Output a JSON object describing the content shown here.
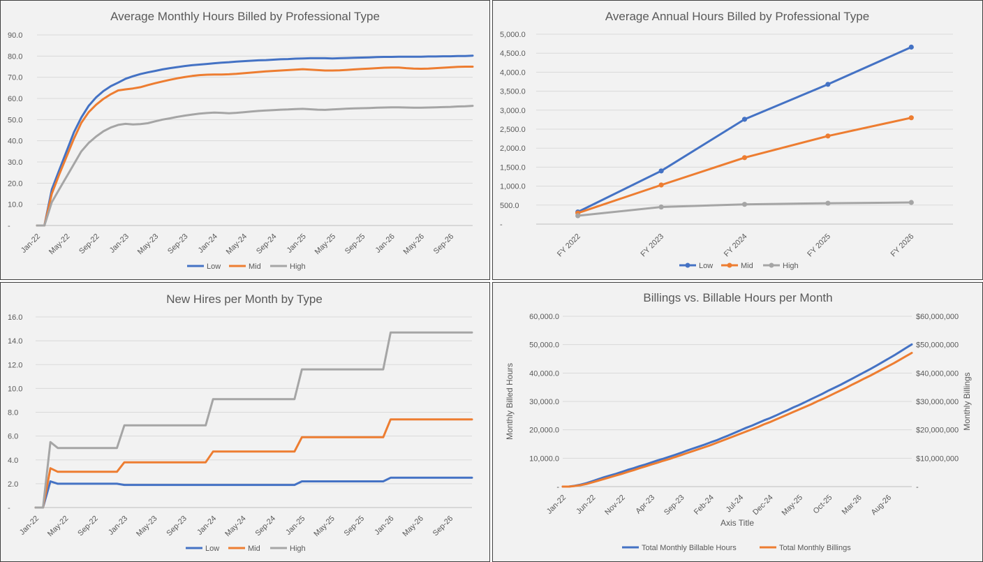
{
  "colors": {
    "low": "#4472c4",
    "mid": "#ed7d31",
    "high": "#a5a5a5",
    "grid": "#d9d9d9",
    "text": "#595959",
    "panel": "#f2f2f2"
  },
  "chart_data": [
    {
      "type": "line",
      "title": "Average Monthly Hours Billed by Professional Type",
      "x_tick_labels": [
        "Jan-22",
        "May-22",
        "Sep-22",
        "Jan-23",
        "May-23",
        "Sep-23",
        "Jan-24",
        "May-24",
        "Sep-24",
        "Jan-25",
        "May-25",
        "Sep-25",
        "Jan-26",
        "May-26",
        "Sep-26"
      ],
      "x_count": 60,
      "ylim": [
        0,
        90
      ],
      "y_tick_labels": [
        "-",
        "10.0",
        "20.0",
        "30.0",
        "40.0",
        "50.0",
        "60.0",
        "70.0",
        "80.0",
        "90.0"
      ],
      "legend": "bottom",
      "series": [
        {
          "name": "Low",
          "values": [
            0,
            0,
            17,
            26,
            35,
            44,
            51,
            56.5,
            60.5,
            63.5,
            65.8,
            67.5,
            69.3,
            70.5,
            71.5,
            72.3,
            73,
            73.7,
            74.3,
            74.8,
            75.3,
            75.7,
            76,
            76.3,
            76.6,
            76.9,
            77.1,
            77.4,
            77.6,
            77.8,
            78,
            78.1,
            78.3,
            78.5,
            78.6,
            78.8,
            78.9,
            79,
            79,
            79,
            78.9,
            79,
            79.1,
            79.2,
            79.3,
            79.4,
            79.5,
            79.6,
            79.6,
            79.7,
            79.7,
            79.7,
            79.7,
            79.8,
            79.8,
            79.9,
            79.9,
            80,
            80,
            80.2
          ]
        },
        {
          "name": "Mid",
          "values": [
            0,
            0,
            15,
            24,
            32.5,
            41,
            48.5,
            53.5,
            57,
            59.8,
            62,
            63.8,
            64.3,
            64.7,
            65.3,
            66.3,
            67.2,
            68,
            68.8,
            69.5,
            70.1,
            70.6,
            71,
            71.2,
            71.3,
            71.3,
            71.4,
            71.6,
            71.9,
            72.2,
            72.5,
            72.8,
            73,
            73.2,
            73.4,
            73.6,
            73.8,
            73.6,
            73.4,
            73.2,
            73.2,
            73.3,
            73.5,
            73.7,
            73.9,
            74.1,
            74.3,
            74.5,
            74.6,
            74.6,
            74.3,
            74.1,
            74,
            74.1,
            74.3,
            74.5,
            74.7,
            74.9,
            75,
            75
          ]
        },
        {
          "name": "High",
          "values": [
            0,
            0,
            11,
            17,
            23,
            29,
            35,
            39,
            42,
            44.5,
            46.3,
            47.5,
            48,
            47.7,
            47.9,
            48.3,
            49.2,
            50,
            50.6,
            51.3,
            51.9,
            52.4,
            52.8,
            53.1,
            53.3,
            53.2,
            53,
            53.2,
            53.5,
            53.8,
            54.1,
            54.3,
            54.5,
            54.7,
            54.8,
            55,
            55.1,
            54.9,
            54.7,
            54.6,
            54.8,
            55,
            55.2,
            55.3,
            55.4,
            55.5,
            55.6,
            55.7,
            55.8,
            55.8,
            55.7,
            55.6,
            55.6,
            55.7,
            55.8,
            55.9,
            56,
            56.2,
            56.3,
            56.5
          ]
        }
      ]
    },
    {
      "type": "line",
      "title": "Average Annual Hours Billed by Professional Type",
      "categories": [
        "FY 2022",
        "FY 2023",
        "FY 2024",
        "FY 2025",
        "FY 2026"
      ],
      "ylim": [
        0,
        5000
      ],
      "y_tick_labels": [
        "-",
        "500.0",
        "1,000.0",
        "1,500.0",
        "2,000.0",
        "2,500.0",
        "3,000.0",
        "3,500.0",
        "4,000.0",
        "4,500.0",
        "5,000.0"
      ],
      "markers": true,
      "legend": "bottom",
      "series": [
        {
          "name": "Low",
          "values": [
            320,
            1400,
            2760,
            3680,
            4660
          ]
        },
        {
          "name": "Mid",
          "values": [
            290,
            1030,
            1750,
            2320,
            2800
          ]
        },
        {
          "name": "High",
          "values": [
            220,
            450,
            520,
            550,
            570
          ]
        }
      ]
    },
    {
      "type": "line",
      "title": "New Hires per Month by Type",
      "x_tick_labels": [
        "Jan-22",
        "May-22",
        "Sep-22",
        "Jan-23",
        "May-23",
        "Sep-23",
        "Jan-24",
        "May-24",
        "Sep-24",
        "Jan-25",
        "May-25",
        "Sep-25",
        "Jan-26",
        "May-26",
        "Sep-26"
      ],
      "x_count": 60,
      "ylim": [
        0,
        16
      ],
      "y_tick_labels": [
        "-",
        "2.0",
        "4.0",
        "6.0",
        "8.0",
        "10.0",
        "12.0",
        "14.0",
        "16.0"
      ],
      "legend": "bottom",
      "series": [
        {
          "name": "Low",
          "values": [
            0,
            0,
            2.2,
            2,
            2,
            2,
            2,
            2,
            2,
            2,
            2,
            2,
            1.9,
            1.9,
            1.9,
            1.9,
            1.9,
            1.9,
            1.9,
            1.9,
            1.9,
            1.9,
            1.9,
            1.9,
            1.9,
            1.9,
            1.9,
            1.9,
            1.9,
            1.9,
            1.9,
            1.9,
            1.9,
            1.9,
            1.9,
            1.9,
            2.2,
            2.2,
            2.2,
            2.2,
            2.2,
            2.2,
            2.2,
            2.2,
            2.2,
            2.2,
            2.2,
            2.2,
            2.5,
            2.5,
            2.5,
            2.5,
            2.5,
            2.5,
            2.5,
            2.5,
            2.5,
            2.5,
            2.5,
            2.5
          ]
        },
        {
          "name": "Mid",
          "values": [
            0,
            0,
            3.3,
            3,
            3,
            3,
            3,
            3,
            3,
            3,
            3,
            3,
            3.8,
            3.8,
            3.8,
            3.8,
            3.8,
            3.8,
            3.8,
            3.8,
            3.8,
            3.8,
            3.8,
            3.8,
            4.7,
            4.7,
            4.7,
            4.7,
            4.7,
            4.7,
            4.7,
            4.7,
            4.7,
            4.7,
            4.7,
            4.7,
            5.9,
            5.9,
            5.9,
            5.9,
            5.9,
            5.9,
            5.9,
            5.9,
            5.9,
            5.9,
            5.9,
            5.9,
            7.4,
            7.4,
            7.4,
            7.4,
            7.4,
            7.4,
            7.4,
            7.4,
            7.4,
            7.4,
            7.4,
            7.4
          ]
        },
        {
          "name": "High",
          "values": [
            0,
            0,
            5.5,
            5,
            5,
            5,
            5,
            5,
            5,
            5,
            5,
            5,
            6.9,
            6.9,
            6.9,
            6.9,
            6.9,
            6.9,
            6.9,
            6.9,
            6.9,
            6.9,
            6.9,
            6.9,
            9.1,
            9.1,
            9.1,
            9.1,
            9.1,
            9.1,
            9.1,
            9.1,
            9.1,
            9.1,
            9.1,
            9.1,
            11.6,
            11.6,
            11.6,
            11.6,
            11.6,
            11.6,
            11.6,
            11.6,
            11.6,
            11.6,
            11.6,
            11.6,
            14.7,
            14.7,
            14.7,
            14.7,
            14.7,
            14.7,
            14.7,
            14.7,
            14.7,
            14.7,
            14.7,
            14.7
          ]
        }
      ]
    },
    {
      "type": "line",
      "title": "Billings vs. Billable Hours per Month",
      "x_tick_labels": [
        "Jan-22",
        "Jun-22",
        "Nov-22",
        "Apr-23",
        "Sep-23",
        "Feb-24",
        "Jul-24",
        "Dec-24",
        "May-25",
        "Oct-25",
        "Mar-26",
        "Aug-26"
      ],
      "x_count": 60,
      "xlabel": "Axis Title",
      "ylabel": "Monthly Billed Hours",
      "y2label": "Monthly Billings",
      "ylim": [
        0,
        60000
      ],
      "y2lim": [
        0,
        60000000
      ],
      "y_tick_labels": [
        "-",
        "10,000.0",
        "20,000.0",
        "30,000.0",
        "40,000.0",
        "50,000.0",
        "60,000.0"
      ],
      "y2_tick_labels": [
        "-",
        "$10,000,000",
        "$20,000,000",
        "$30,000,000",
        "$40,000,000",
        "$50,000,000",
        "$60,000,000"
      ],
      "legend": "bottom",
      "series": [
        {
          "name": "Total Monthly Billable Hours",
          "axis": "left",
          "values": [
            0,
            0,
            300,
            700,
            1200,
            1900,
            2600,
            3300,
            3900,
            4500,
            5200,
            5900,
            6500,
            7200,
            7800,
            8500,
            9200,
            9800,
            10500,
            11200,
            11900,
            12700,
            13400,
            14100,
            14800,
            15600,
            16300,
            17200,
            18000,
            18900,
            19800,
            20700,
            21500,
            22400,
            23300,
            24100,
            25000,
            26000,
            26900,
            27900,
            28800,
            29800,
            30800,
            31800,
            32800,
            33900,
            34900,
            35900,
            37000,
            38100,
            39200,
            40300,
            41400,
            42600,
            43800,
            45000,
            46200,
            47500,
            48800,
            50100
          ]
        },
        {
          "name": "Total Monthly Billings",
          "axis": "right",
          "values": [
            0,
            0,
            200000,
            500000,
            900000,
            1500000,
            2100000,
            2700000,
            3300000,
            3900000,
            4500000,
            5200000,
            5800000,
            6500000,
            7100000,
            7800000,
            8400000,
            9100000,
            9700000,
            10400000,
            11100000,
            11800000,
            12500000,
            13200000,
            13900000,
            14600000,
            15400000,
            16200000,
            17000000,
            17800000,
            18600000,
            19400000,
            20200000,
            21000000,
            21900000,
            22700000,
            23600000,
            24500000,
            25400000,
            26300000,
            27200000,
            28100000,
            29000000,
            30000000,
            30900000,
            31900000,
            32900000,
            33900000,
            34900000,
            36000000,
            37000000,
            38100000,
            39100000,
            40200000,
            41300000,
            42400000,
            43500000,
            44700000,
            45900000,
            47100000
          ]
        }
      ]
    }
  ]
}
